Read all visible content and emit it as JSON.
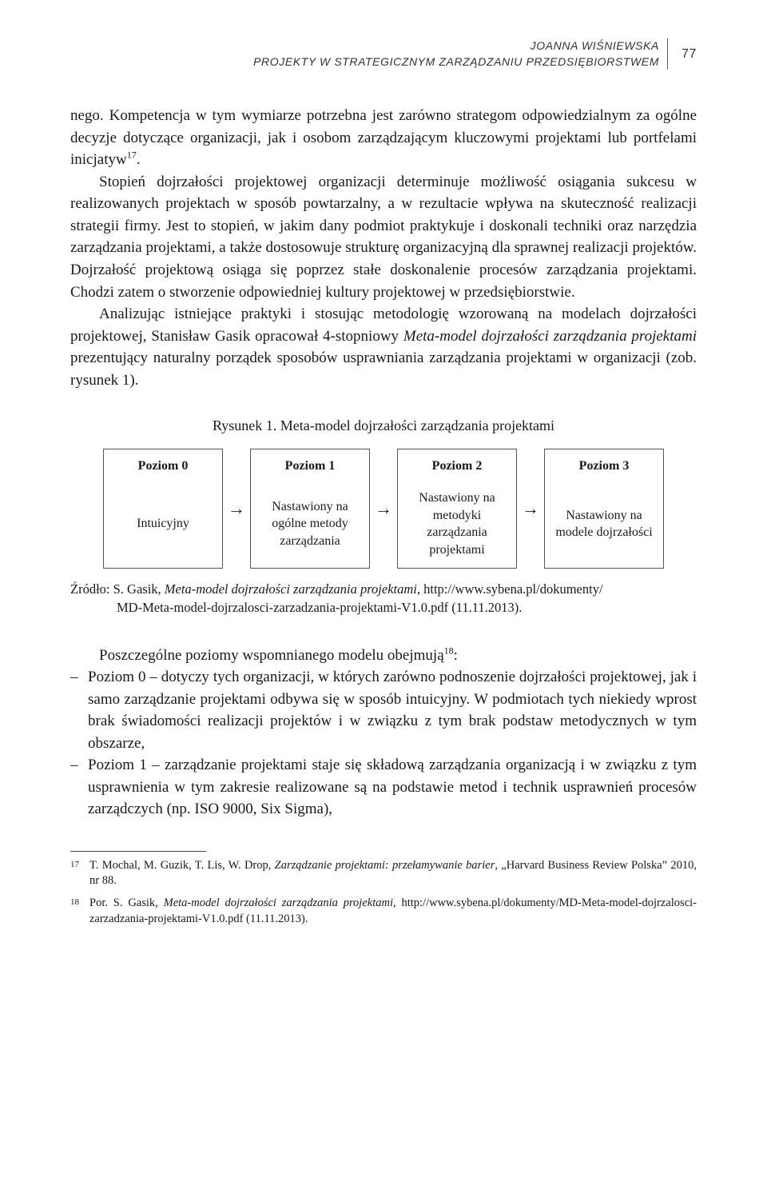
{
  "header": {
    "author": "JOANNA WIŚNIEWSKA",
    "subtitle": "PROJEKTY W STRATEGICZNYM ZARZĄDZANIU PRZEDSIĘBIORSTWEM",
    "page_number": "77"
  },
  "paragraphs": {
    "p1_lead": "nego. Kompetencja w tym wymiarze potrzebna jest zarówno strategom odpowiedzialnym za ogólne decyzje dotyczące organizacji, jak i osobom zarządzającym kluczowymi projektami lub portfelami inicjatyw",
    "p1_sup": "17",
    "p1_tail": ".",
    "p2": "Stopień dojrzałości projektowej organizacji determinuje możliwość osiągania sukcesu w realizowanych projektach w sposób powtarzalny, a w rezultacie wpływa na skuteczność realizacji strategii firmy. Jest to stopień, w jakim dany podmiot praktykuje i doskonali techniki oraz narzędzia zarządzania projektami, a także dostosowuje strukturę organizacyjną dla sprawnej realizacji projektów. Dojrzałość projektową osiąga się poprzez stałe doskonalenie procesów zarządzania projektami. Chodzi zatem o stworzenie odpowiedniej kultury projektowej w przedsiębiorstwie.",
    "p3_a": "Analizując istniejące praktyki i stosując metodologię wzorowaną na modelach dojrzałości projektowej, Stanisław Gasik opracował 4-stopniowy ",
    "p3_b_italic": "Meta-model dojrzałości zarządzania projektami",
    "p3_c": " prezentujący naturalny porządek sposobów usprawniania zarządzania projektami w organizacji (zob. rysunek 1)."
  },
  "figure": {
    "caption": "Rysunek 1. Meta-model dojrzałości zarządzania projektami",
    "arrow": "→",
    "levels": [
      {
        "title": "Poziom 0",
        "desc": "Intuicyjny"
      },
      {
        "title": "Poziom 1",
        "desc": "Nastawiony na ogólne metody zarządzania"
      },
      {
        "title": "Poziom 2",
        "desc": "Nastawiony na metodyki zarządzania projektami"
      },
      {
        "title": "Poziom 3",
        "desc": "Nastawiony na modele dojrzałości"
      }
    ],
    "source_label": "Źródło: S. Gasik, ",
    "source_italic": "Meta-model dojrzałości zarządzania projektami",
    "source_tail": ", http://www.sybena.pl/dokumenty/",
    "source_line2": "MD-Meta-model-dojrzalosci-zarzadzania-projektami-V1.0.pdf (11.11.2013)."
  },
  "after_fig": {
    "intro_a": "Poszczególne poziomy wspomnianego modelu obejmują",
    "intro_sup": "18",
    "intro_b": ":",
    "items": [
      "Poziom 0 – dotyczy tych organizacji, w których zarówno podnoszenie dojrzałości projektowej, jak i samo zarządzanie projektami odbywa się w sposób intuicyjny. W podmiotach tych niekiedy wprost brak świadomości realizacji projektów i w związku z tym brak podstaw metodycznych w tym obszarze,",
      "Poziom 1 – zarządzanie projektami staje się składową zarządzania organizacją i w związku z tym usprawnienia w tym zakresie realizowane są na podstawie metod i technik usprawnień procesów zarządczych (np. ISO 9000, Six Sigma),"
    ]
  },
  "footnotes": {
    "f17_num": "17",
    "f17_a": "T. Mochal, M. Guzik, T. Lis, W. Drop, ",
    "f17_italic": "Zarządzanie projektami: przełamywanie barier",
    "f17_b": ", „Harvard Business Review Polska” 2010, nr 88.",
    "f18_num": "18",
    "f18_a": "Por. S. Gasik, ",
    "f18_italic": "Meta-model dojrzałości zarządzania projektami",
    "f18_b": ", http://www.sybena.pl/dokumenty/MD-Meta-model-dojrzalosci-zarzadzania-projektami-V1.0.pdf (11.11.2013)."
  },
  "colors": {
    "text": "#1a1a1a",
    "rule": "#444444",
    "box_border": "#555555",
    "background": "#ffffff"
  }
}
